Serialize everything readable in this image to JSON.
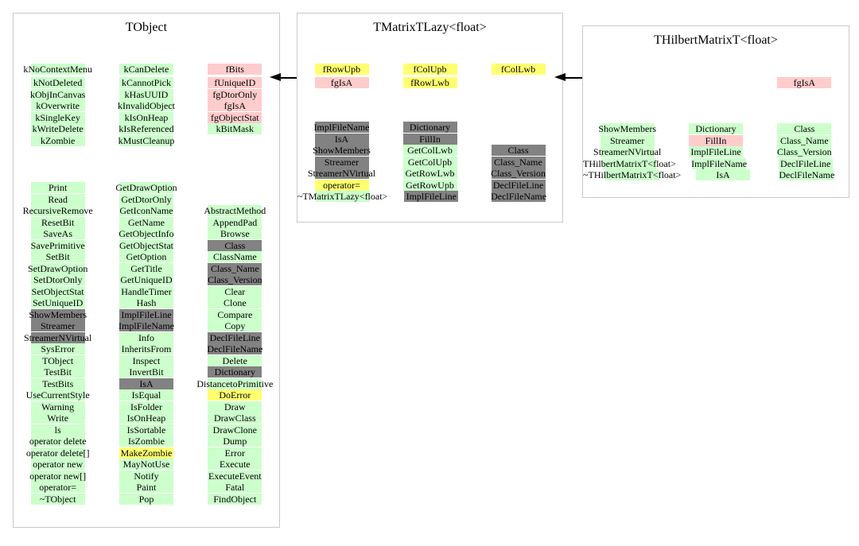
{
  "colors": {
    "g": "#ccffcc",
    "p": "#ffcccc",
    "y": "#ffff70",
    "d": "#828282"
  },
  "color_legend": {
    "g": "green-cell",
    "p": "pink-cell",
    "y": "yellow-cell",
    "d": "gray-cell"
  },
  "arrows": [
    {
      "from": "TMatrixTLazy<float>",
      "to": "TObject"
    },
    {
      "from": "THilbertMatrixT<float>",
      "to": "TMatrixTLazy<float>"
    }
  ],
  "boxes": [
    {
      "title": "TObject",
      "groups": [
        {
          "rows": [
            [
              [
                "kNoContextMenu",
                "g"
              ],
              [
                "kCanDelete",
                "g"
              ],
              [
                "fBits",
                "p"
              ]
            ],
            [
              [
                "kNotDeleted",
                "g"
              ],
              [
                "kCannotPick",
                "g"
              ],
              [
                "fUniqueID",
                "p"
              ]
            ],
            [
              [
                "kObjInCanvas",
                "g"
              ],
              [
                "kHasUUID",
                "g"
              ],
              [
                "fgDtorOnly",
                "p"
              ]
            ],
            [
              [
                "kOverwrite",
                "g"
              ],
              [
                "kInvalidObject",
                "g"
              ],
              [
                "fgIsA",
                "p"
              ]
            ],
            [
              [
                "kSingleKey",
                "g"
              ],
              [
                "kIsOnHeap",
                "g"
              ],
              [
                "fgObjectStat",
                "p"
              ]
            ],
            [
              [
                "kWriteDelete",
                "g"
              ],
              [
                "kIsReferenced",
                "g"
              ],
              [
                "kBitMask",
                "g"
              ]
            ],
            [
              [
                "kZombie",
                "g"
              ],
              [
                "kMustCleanup",
                "g"
              ],
              null
            ]
          ]
        },
        {
          "rows": [
            [
              [
                "Print",
                "g"
              ],
              [
                "GetDrawOption",
                "g"
              ],
              null
            ],
            [
              [
                "Read",
                "g"
              ],
              [
                "GetDtorOnly",
                "g"
              ],
              null
            ],
            [
              [
                "RecursiveRemove",
                "g"
              ],
              [
                "GetIconName",
                "g"
              ],
              [
                "AbstractMethod",
                "g"
              ]
            ],
            [
              [
                "ResetBit",
                "g"
              ],
              [
                "GetName",
                "g"
              ],
              [
                "AppendPad",
                "g"
              ]
            ],
            [
              [
                "SaveAs",
                "g"
              ],
              [
                "GetObjectInfo",
                "g"
              ],
              [
                "Browse",
                "g"
              ]
            ],
            [
              [
                "SavePrimitive",
                "g"
              ],
              [
                "GetObjectStat",
                "g"
              ],
              [
                "Class",
                "d"
              ]
            ],
            [
              [
                "SetBit",
                "g"
              ],
              [
                "GetOption",
                "g"
              ],
              [
                "ClassName",
                "g"
              ]
            ],
            [
              [
                "SetDrawOption",
                "g"
              ],
              [
                "GetTitle",
                "g"
              ],
              [
                "Class_Name",
                "d"
              ]
            ],
            [
              [
                "SetDtorOnly",
                "g"
              ],
              [
                "GetUniqueID",
                "g"
              ],
              [
                "Class_Version",
                "d"
              ]
            ],
            [
              [
                "SetObjectStat",
                "g"
              ],
              [
                "HandleTimer",
                "g"
              ],
              [
                "Clear",
                "g"
              ]
            ],
            [
              [
                "SetUniqueID",
                "g"
              ],
              [
                "Hash",
                "g"
              ],
              [
                "Clone",
                "g"
              ]
            ],
            [
              [
                "ShowMembers",
                "d"
              ],
              [
                "ImplFileLine",
                "d"
              ],
              [
                "Compare",
                "g"
              ]
            ],
            [
              [
                "Streamer",
                "d"
              ],
              [
                "ImplFileName",
                "d"
              ],
              [
                "Copy",
                "g"
              ]
            ],
            [
              [
                "StreamerNVirtual",
                "d"
              ],
              [
                "Info",
                "g"
              ],
              [
                "DeclFileLine",
                "d"
              ]
            ],
            [
              [
                "SysError",
                "g"
              ],
              [
                "InheritsFrom",
                "g"
              ],
              [
                "DeclFileName",
                "d"
              ]
            ],
            [
              [
                "TObject",
                "g"
              ],
              [
                "Inspect",
                "g"
              ],
              [
                "Delete",
                "g"
              ]
            ],
            [
              [
                "TestBit",
                "g"
              ],
              [
                "InvertBit",
                "g"
              ],
              [
                "Dictionary",
                "d"
              ]
            ],
            [
              [
                "TestBits",
                "g"
              ],
              [
                "IsA",
                "d"
              ],
              [
                "DistancetoPrimitive",
                "g"
              ]
            ],
            [
              [
                "UseCurrentStyle",
                "g"
              ],
              [
                "IsEqual",
                "g"
              ],
              [
                "DoError",
                "y"
              ]
            ],
            [
              [
                "Warning",
                "g"
              ],
              [
                "IsFolder",
                "g"
              ],
              [
                "Draw",
                "g"
              ]
            ],
            [
              [
                "Write",
                "g"
              ],
              [
                "IsOnHeap",
                "g"
              ],
              [
                "DrawClass",
                "g"
              ]
            ],
            [
              [
                "ls",
                "g"
              ],
              [
                "IsSortable",
                "g"
              ],
              [
                "DrawClone",
                "g"
              ]
            ],
            [
              [
                "operator delete",
                "g"
              ],
              [
                "IsZombie",
                "g"
              ],
              [
                "Dump",
                "g"
              ]
            ],
            [
              [
                "operator delete[]",
                "g"
              ],
              [
                "MakeZombie",
                "y"
              ],
              [
                "Error",
                "g"
              ]
            ],
            [
              [
                "operator new",
                "g"
              ],
              [
                "MayNotUse",
                "g"
              ],
              [
                "Execute",
                "g"
              ]
            ],
            [
              [
                "operator new[]",
                "g"
              ],
              [
                "Notify",
                "g"
              ],
              [
                "ExecuteEvent",
                "g"
              ]
            ],
            [
              [
                "operator=",
                "g"
              ],
              [
                "Paint",
                "g"
              ],
              [
                "Fatal",
                "g"
              ]
            ],
            [
              [
                "~TObject",
                "g"
              ],
              [
                "Pop",
                "g"
              ],
              [
                "FindObject",
                "g"
              ]
            ]
          ]
        }
      ]
    },
    {
      "title": "TMatrixTLazy<float>",
      "groups": [
        {
          "rows": [
            [
              [
                "fRowUpb",
                "y"
              ],
              [
                "fColUpb",
                "y"
              ],
              [
                "fColLwb",
                "y"
              ]
            ],
            [
              [
                "fgIsA",
                "p"
              ],
              [
                "fRowLwb",
                "y"
              ],
              null
            ]
          ]
        },
        {
          "rows": [
            [
              [
                "ImplFileName",
                "d"
              ],
              [
                "Dictionary",
                "d"
              ],
              null
            ],
            [
              [
                "IsA",
                "d"
              ],
              [
                "FillIn",
                "d"
              ],
              null
            ],
            [
              [
                "ShowMembers",
                "d"
              ],
              [
                "GetColLwb",
                "g"
              ],
              [
                "Class",
                "d"
              ]
            ],
            [
              [
                "Streamer",
                "d"
              ],
              [
                "GetColUpb",
                "g"
              ],
              [
                "Class_Name",
                "d"
              ]
            ],
            [
              [
                "StreamerNVirtual",
                "d"
              ],
              [
                "GetRowLwb",
                "g"
              ],
              [
                "Class_Version",
                "d"
              ]
            ],
            [
              [
                "operator=",
                "y"
              ],
              [
                "GetRowUpb",
                "g"
              ],
              [
                "DeclFileLine",
                "d"
              ]
            ],
            [
              [
                "~TMatrixTLazy<float>",
                "g"
              ],
              [
                "ImplFileLine",
                "d"
              ],
              [
                "DeclFileName",
                "d"
              ]
            ]
          ]
        }
      ]
    },
    {
      "title": "THilbertMatrixT<float>",
      "groups": [
        {
          "rows": [
            [
              null,
              null,
              [
                "fgIsA",
                "p"
              ]
            ]
          ]
        },
        {
          "rows": [
            [
              [
                "ShowMembers",
                "g"
              ],
              [
                "Dictionary",
                "g"
              ],
              [
                "Class",
                "g"
              ]
            ],
            [
              [
                "Streamer",
                "g"
              ],
              [
                "FillIn",
                "p"
              ],
              [
                "Class_Name",
                "g"
              ]
            ],
            [
              [
                "StreamerNVirtual",
                "g"
              ],
              [
                "ImplFileLine",
                "g"
              ],
              [
                "Class_Version",
                "g"
              ]
            ],
            [
              [
                "THilbertMatrixT<float>",
                "g"
              ],
              [
                "ImplFileName",
                "g"
              ],
              [
                "DeclFileLine",
                "g"
              ]
            ],
            [
              [
                "~THilbertMatrixT<float>",
                "g"
              ],
              [
                "IsA",
                "g"
              ],
              [
                "DeclFileName",
                "g"
              ]
            ]
          ]
        }
      ]
    }
  ]
}
